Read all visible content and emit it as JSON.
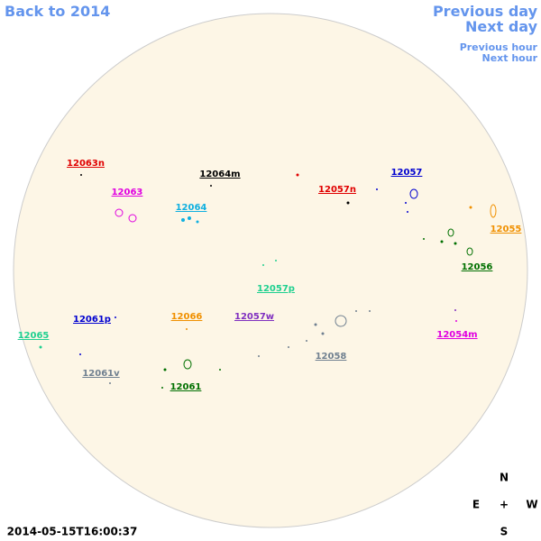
{
  "nav": {
    "back": "Back to 2014",
    "previous_day": "Previous day",
    "next_day": "Next day",
    "previous_hour": "Previous hour",
    "next_hour": "Next hour"
  },
  "timestamp": "2014-05-15T16:00:37",
  "compass": {
    "north": "N",
    "east": "E",
    "center": "+",
    "west": "W",
    "south": "S"
  },
  "regions": [
    {
      "label": "12063n",
      "color": "#e00000"
    },
    {
      "label": "12064m",
      "color": "#000000"
    },
    {
      "label": "12057",
      "color": "#0000d0"
    },
    {
      "label": "12057n",
      "color": "#e00000"
    },
    {
      "label": "12063",
      "color": "#e000e0"
    },
    {
      "label": "12064",
      "color": "#10b0e0"
    },
    {
      "label": "12055",
      "color": "#f09000"
    },
    {
      "label": "12056",
      "color": "#007000"
    },
    {
      "label": "12057p",
      "color": "#20d090"
    },
    {
      "label": "12061p",
      "color": "#0000d0"
    },
    {
      "label": "12066",
      "color": "#f09000"
    },
    {
      "label": "12057w",
      "color": "#8030c0"
    },
    {
      "label": "12065",
      "color": "#20d090"
    },
    {
      "label": "12054m",
      "color": "#e000e0"
    },
    {
      "label": "12058",
      "color": "#708090"
    },
    {
      "label": "12061v",
      "color": "#708090"
    },
    {
      "label": "12061",
      "color": "#007000"
    }
  ]
}
